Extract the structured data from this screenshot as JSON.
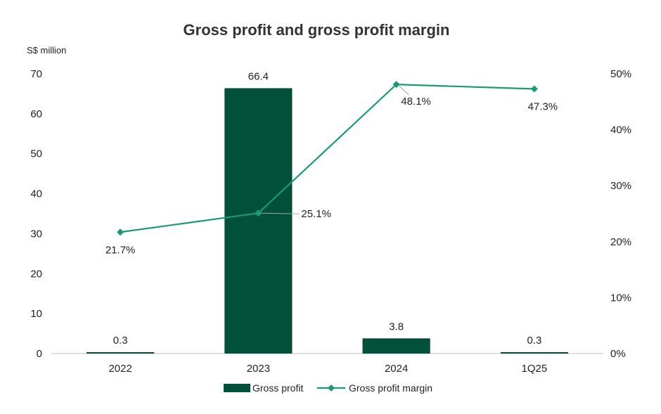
{
  "chart_data": {
    "type": "bar",
    "title": "Gross profit and gross profit margin",
    "y_unit_label": "S$ million",
    "categories": [
      "2022",
      "2023",
      "2024",
      "1Q25"
    ],
    "bar_series": {
      "name": "Gross profit",
      "values": [
        0.3,
        66.4,
        3.8,
        0.3
      ],
      "value_labels": [
        "0.3",
        "66.4",
        "3.8",
        "0.3"
      ],
      "color": "#00503A"
    },
    "line_series": {
      "name": "Gross profit margin",
      "values": [
        21.7,
        25.1,
        48.1,
        47.3
      ],
      "value_labels": [
        "21.7%",
        "25.1%",
        "48.1%",
        "47.3%"
      ],
      "color": "#1A9A74"
    },
    "y_left": {
      "ticks": [
        "0",
        "10",
        "20",
        "30",
        "40",
        "50",
        "60",
        "70"
      ],
      "ylim": [
        0,
        70
      ]
    },
    "y_right": {
      "ticks": [
        "0%",
        "10%",
        "20%",
        "30%",
        "40%",
        "50%"
      ],
      "ylim": [
        0,
        50
      ]
    },
    "grid": false,
    "legend_position": "bottom"
  }
}
